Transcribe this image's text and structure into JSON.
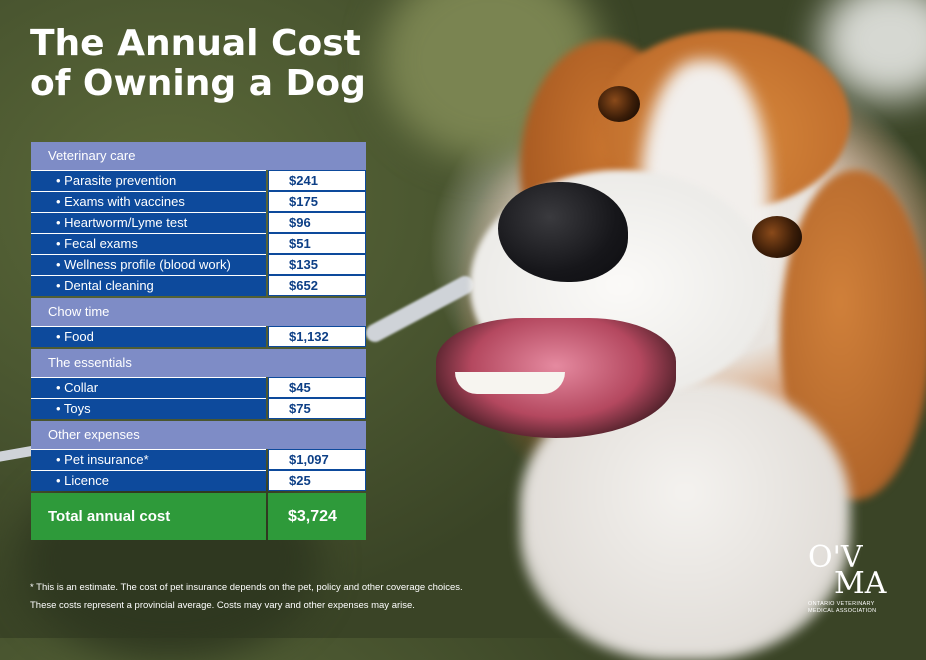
{
  "title": {
    "line1": "The Annual Cost",
    "line2": "of Owning a Dog"
  },
  "sections": [
    {
      "heading": "Veterinary care",
      "items": [
        {
          "label": "• Parasite prevention",
          "value": "$241"
        },
        {
          "label": "• Exams with vaccines",
          "value": "$175"
        },
        {
          "label": "• Heartworm/Lyme test",
          "value": "$96"
        },
        {
          "label": "• Fecal exams",
          "value": "$51"
        },
        {
          "label": "• Wellness profile (blood work)",
          "value": "$135"
        },
        {
          "label": "• Dental cleaning",
          "value": "$652"
        }
      ]
    },
    {
      "heading": "Chow time",
      "items": [
        {
          "label": "• Food",
          "value": "$1,132"
        }
      ]
    },
    {
      "heading": "The essentials",
      "items": [
        {
          "label": "• Collar",
          "value": "$45"
        },
        {
          "label": "• Toys",
          "value": "$75"
        }
      ]
    },
    {
      "heading": "Other expenses",
      "items": [
        {
          "label": "• Pet insurance*",
          "value": "$1,097"
        },
        {
          "label": "• Licence",
          "value": "$25"
        }
      ]
    }
  ],
  "total": {
    "label": "Total annual cost",
    "value": "$3,724"
  },
  "notes": {
    "line1": "* This is an estimate. The cost of pet insurance depends on the pet, policy and other coverage choices.",
    "line2": "These costs represent a provincial average. Costs may vary and other expenses may arise."
  },
  "logo": {
    "mark_top": "O'V",
    "mark_bottom": "MA",
    "subtitle_line1": "ONTARIO VETERINARY",
    "subtitle_line2": "MEDICAL ASSOCIATION"
  },
  "colors": {
    "section_heading": "#7e8cc6",
    "item_label": "#0d4a9c",
    "total": "#2e9a3a"
  }
}
